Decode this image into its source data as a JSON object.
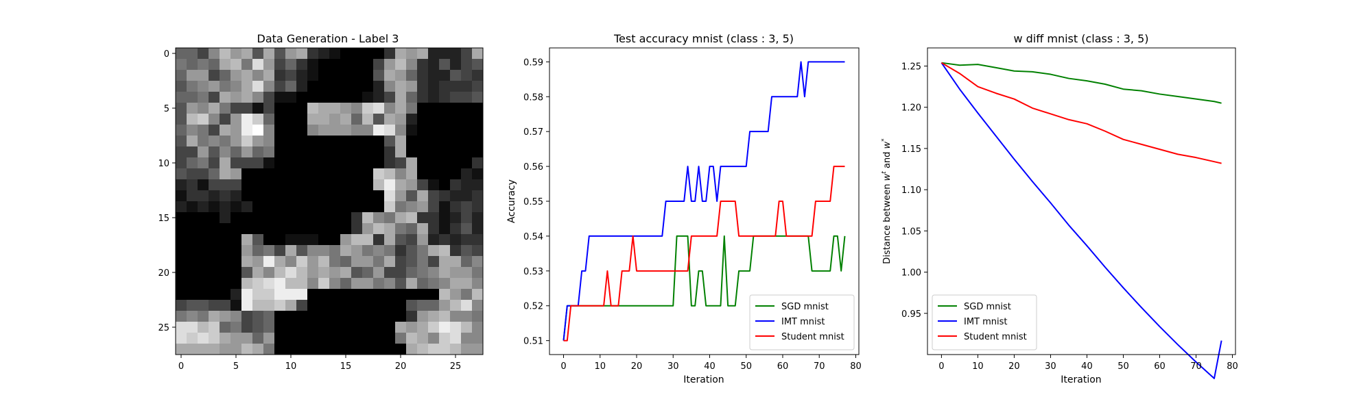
{
  "chart_data": [
    {
      "type": "heatmap",
      "title": "Data Generation - Label 3",
      "colormap": "gray",
      "xticks": [
        0,
        5,
        10,
        15,
        20,
        25
      ],
      "yticks": [
        0,
        5,
        10,
        15,
        20,
        25
      ],
      "grid_size": 28,
      "rows": [
        "6648B9A5A59A32100003A9A2224A",
        "7676AB7D946310000049B8325245",
        "699469A8A3421000005A96322543",
        "578978AD846200000028A9323334",
        "6674A9A8411000000124A6323445",
        "598A74414000BAA98CD8A7000000",
        "5BC849EC6000AA9A6B5A92000000",
        "6874A9EF8000899988ED81000000",
        "5A7879C9800000000005A0000000",
        "44958696700000000003A0000000",
        "4674A4441000000000034A000003",
        "5446A9000000000000CB8A000021",
        "231444000000000000BEA9410322",
        "1332320000000000000D95A43223",
        "2121212000000000000C78941343",
        "00002000000000003B87AB331242",
        "000000000000000039BA76A31352",
        "000000A500111009BB3A54923233",
        "0000009674A5887A9787357AB354",
        "000000A9EA8C9B76997A4574AA68",
        "0000005A8BDB9A9A56944678A997",
        "000000BCDEBB8C8699785A678AA8",
        "000002ECCEEE000000000000B97B",
        "455441EBBCA40000000005669BD8",
        "787A9845600000000000039AB887",
        "DDBC6745600000000000A9ACEDB8",
        "DCDCA9969000000000007BA8CD88",
        "AAAA99BA7000000000000ABCCB99"
      ]
    },
    {
      "type": "line",
      "title": "Test accuracy mnist (class : 3, 5)",
      "xlabel": "Iteration",
      "ylabel": "Accuracy",
      "xlim": [
        -3.85,
        80.85
      ],
      "ylim": [
        0.506,
        0.594
      ],
      "xticks": [
        0,
        10,
        20,
        30,
        40,
        50,
        60,
        70,
        80
      ],
      "yticks": [
        0.51,
        0.52,
        0.53,
        0.54,
        0.55,
        0.56,
        0.57,
        0.58,
        0.59
      ],
      "legend_position": "lower right",
      "x": [
        0,
        1,
        2,
        3,
        4,
        5,
        6,
        7,
        8,
        9,
        10,
        11,
        12,
        13,
        14,
        15,
        16,
        17,
        18,
        19,
        20,
        21,
        22,
        23,
        24,
        25,
        26,
        27,
        28,
        29,
        30,
        31,
        32,
        33,
        34,
        35,
        36,
        37,
        38,
        39,
        40,
        41,
        42,
        43,
        44,
        45,
        46,
        47,
        48,
        49,
        50,
        51,
        52,
        53,
        54,
        55,
        56,
        57,
        58,
        59,
        60,
        61,
        62,
        63,
        64,
        65,
        66,
        67,
        68,
        69,
        70,
        71,
        72,
        73,
        74,
        75,
        76,
        77
      ],
      "series": [
        {
          "name": "SGD mnist",
          "color": "#008000",
          "values": [
            0.51,
            0.52,
            0.52,
            0.52,
            0.52,
            0.52,
            0.52,
            0.52,
            0.52,
            0.52,
            0.52,
            0.52,
            0.52,
            0.52,
            0.52,
            0.52,
            0.52,
            0.52,
            0.52,
            0.52,
            0.52,
            0.52,
            0.52,
            0.52,
            0.52,
            0.52,
            0.52,
            0.52,
            0.52,
            0.52,
            0.52,
            0.54,
            0.54,
            0.54,
            0.54,
            0.52,
            0.52,
            0.53,
            0.53,
            0.52,
            0.52,
            0.52,
            0.52,
            0.52,
            0.54,
            0.52,
            0.52,
            0.52,
            0.53,
            0.53,
            0.53,
            0.53,
            0.54,
            0.54,
            0.54,
            0.54,
            0.54,
            0.54,
            0.54,
            0.54,
            0.54,
            0.54,
            0.54,
            0.54,
            0.54,
            0.54,
            0.54,
            0.54,
            0.53,
            0.53,
            0.53,
            0.53,
            0.53,
            0.53,
            0.54,
            0.54,
            0.53,
            0.54
          ]
        },
        {
          "name": "IMT mnist",
          "color": "#0000ff",
          "values": [
            0.51,
            0.52,
            0.52,
            0.52,
            0.52,
            0.53,
            0.53,
            0.54,
            0.54,
            0.54,
            0.54,
            0.54,
            0.54,
            0.54,
            0.54,
            0.54,
            0.54,
            0.54,
            0.54,
            0.54,
            0.54,
            0.54,
            0.54,
            0.54,
            0.54,
            0.54,
            0.54,
            0.54,
            0.55,
            0.55,
            0.55,
            0.55,
            0.55,
            0.55,
            0.56,
            0.55,
            0.55,
            0.56,
            0.55,
            0.55,
            0.56,
            0.56,
            0.55,
            0.56,
            0.56,
            0.56,
            0.56,
            0.56,
            0.56,
            0.56,
            0.56,
            0.57,
            0.57,
            0.57,
            0.57,
            0.57,
            0.57,
            0.58,
            0.58,
            0.58,
            0.58,
            0.58,
            0.58,
            0.58,
            0.58,
            0.59,
            0.58,
            0.59,
            0.59,
            0.59,
            0.59,
            0.59,
            0.59,
            0.59,
            0.59,
            0.59,
            0.59,
            0.59
          ]
        },
        {
          "name": "Student mnist",
          "color": "#ff0000",
          "values": [
            0.51,
            0.51,
            0.52,
            0.52,
            0.52,
            0.52,
            0.52,
            0.52,
            0.52,
            0.52,
            0.52,
            0.52,
            0.53,
            0.52,
            0.52,
            0.52,
            0.53,
            0.53,
            0.53,
            0.54,
            0.53,
            0.53,
            0.53,
            0.53,
            0.53,
            0.53,
            0.53,
            0.53,
            0.53,
            0.53,
            0.53,
            0.53,
            0.53,
            0.53,
            0.53,
            0.54,
            0.54,
            0.54,
            0.54,
            0.54,
            0.54,
            0.54,
            0.54,
            0.55,
            0.55,
            0.55,
            0.55,
            0.55,
            0.54,
            0.54,
            0.54,
            0.54,
            0.54,
            0.54,
            0.54,
            0.54,
            0.54,
            0.54,
            0.54,
            0.55,
            0.55,
            0.54,
            0.54,
            0.54,
            0.54,
            0.54,
            0.54,
            0.54,
            0.54,
            0.55,
            0.55,
            0.55,
            0.55,
            0.55,
            0.56,
            0.56,
            0.56,
            0.56
          ]
        }
      ]
    },
    {
      "type": "line",
      "title": "w diff mnist (class : 3, 5)",
      "xlabel": "Iteration",
      "ylabel": "Distance between w^t and w^*",
      "xlim": [
        -3.85,
        80.85
      ],
      "ylim": [
        0.9,
        1.272
      ],
      "xticks": [
        0,
        10,
        20,
        30,
        40,
        50,
        60,
        70,
        80
      ],
      "yticks": [
        0.95,
        1.0,
        1.05,
        1.1,
        1.15,
        1.2,
        1.25
      ],
      "legend_position": "lower left",
      "x": [
        0,
        5,
        10,
        15,
        20,
        25,
        30,
        35,
        40,
        45,
        50,
        55,
        60,
        65,
        70,
        75,
        77
      ],
      "series": [
        {
          "name": "SGD mnist",
          "color": "#008000",
          "values": [
            1.254,
            1.251,
            1.252,
            1.248,
            1.244,
            1.243,
            1.24,
            1.235,
            1.232,
            1.228,
            1.222,
            1.22,
            1.216,
            1.213,
            1.21,
            1.207,
            1.205
          ]
        },
        {
          "name": "IMT mnist",
          "color": "#0000ff",
          "values": [
            1.254,
            1.222,
            1.193,
            1.165,
            1.137,
            1.11,
            1.084,
            1.057,
            1.032,
            1.006,
            0.981,
            0.957,
            0.934,
            0.912,
            0.891,
            0.871,
            0.917
          ]
        },
        {
          "name": "Student mnist",
          "color": "#ff0000",
          "values": [
            1.254,
            1.241,
            1.225,
            1.217,
            1.21,
            1.199,
            1.192,
            1.185,
            1.18,
            1.171,
            1.161,
            1.155,
            1.149,
            1.143,
            1.139,
            1.134,
            1.132
          ]
        }
      ]
    }
  ]
}
